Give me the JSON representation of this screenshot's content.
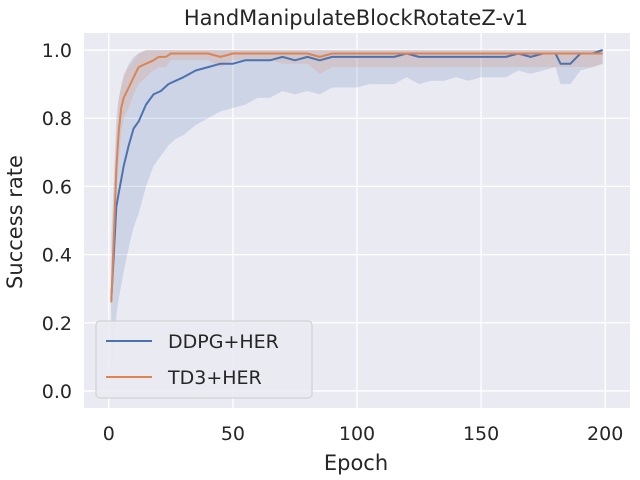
{
  "chart_data": {
    "type": "line",
    "title": "HandManipulateBlockRotateZ-v1",
    "xlabel": "Epoch",
    "ylabel": "Success rate",
    "xlim": [
      -10,
      210
    ],
    "ylim": [
      -0.05,
      1.05
    ],
    "xticks": [
      0,
      50,
      100,
      150,
      200
    ],
    "yticks": [
      0.0,
      0.2,
      0.4,
      0.6,
      0.8,
      1.0
    ],
    "xtick_labels": [
      "0",
      "50",
      "100",
      "150",
      "200"
    ],
    "ytick_labels": [
      "0.0",
      "0.2",
      "0.4",
      "0.6",
      "0.8",
      "1.0"
    ],
    "grid": true,
    "legend_position": "lower-left",
    "series": [
      {
        "name": "DDPG+HER",
        "color": "#4c72b0",
        "x": [
          1,
          2,
          3,
          4,
          6,
          8,
          10,
          12,
          15,
          18,
          21,
          24,
          27,
          30,
          35,
          40,
          45,
          50,
          55,
          60,
          65,
          70,
          75,
          80,
          85,
          90,
          95,
          100,
          105,
          110,
          115,
          120,
          125,
          130,
          135,
          140,
          145,
          150,
          155,
          160,
          165,
          170,
          175,
          180,
          182,
          186,
          190,
          195,
          199
        ],
        "y": [
          0.27,
          0.4,
          0.54,
          0.58,
          0.66,
          0.72,
          0.77,
          0.79,
          0.84,
          0.87,
          0.88,
          0.9,
          0.91,
          0.92,
          0.94,
          0.95,
          0.96,
          0.96,
          0.97,
          0.97,
          0.97,
          0.98,
          0.97,
          0.98,
          0.97,
          0.98,
          0.98,
          0.98,
          0.98,
          0.98,
          0.98,
          0.99,
          0.98,
          0.98,
          0.98,
          0.98,
          0.98,
          0.98,
          0.98,
          0.98,
          0.99,
          0.98,
          0.99,
          0.99,
          0.96,
          0.96,
          0.99,
          0.99,
          1.0
        ],
        "lower": [
          0.05,
          0.13,
          0.22,
          0.27,
          0.35,
          0.42,
          0.48,
          0.52,
          0.6,
          0.66,
          0.69,
          0.72,
          0.74,
          0.75,
          0.78,
          0.8,
          0.82,
          0.83,
          0.84,
          0.86,
          0.86,
          0.88,
          0.87,
          0.88,
          0.87,
          0.89,
          0.89,
          0.89,
          0.9,
          0.9,
          0.9,
          0.92,
          0.9,
          0.91,
          0.91,
          0.92,
          0.91,
          0.92,
          0.92,
          0.92,
          0.94,
          0.93,
          0.94,
          0.95,
          0.9,
          0.9,
          0.94,
          0.95,
          0.96
        ],
        "upper": [
          0.45,
          0.62,
          0.8,
          0.86,
          0.92,
          0.96,
          0.98,
          0.99,
          1.0,
          1.0,
          1.0,
          1.0,
          1.0,
          1.0,
          1.0,
          1.0,
          1.0,
          1.0,
          1.0,
          1.0,
          1.0,
          1.0,
          1.0,
          1.0,
          1.0,
          1.0,
          1.0,
          1.0,
          1.0,
          1.0,
          1.0,
          1.0,
          1.0,
          1.0,
          1.0,
          1.0,
          1.0,
          1.0,
          1.0,
          1.0,
          1.0,
          1.0,
          1.0,
          1.0,
          1.0,
          1.0,
          1.0,
          1.0,
          1.0
        ]
      },
      {
        "name": "TD3+HER",
        "color": "#dd8452",
        "x": [
          1,
          2,
          3,
          4,
          5,
          6,
          8,
          10,
          12,
          15,
          18,
          20,
          23,
          25,
          28,
          30,
          35,
          40,
          45,
          50,
          55,
          60,
          65,
          70,
          75,
          80,
          85,
          90,
          95,
          100,
          105,
          110,
          115,
          120,
          125,
          130,
          135,
          140,
          145,
          150,
          155,
          160,
          165,
          170,
          175,
          180,
          185,
          190,
          195,
          199
        ],
        "y": [
          0.26,
          0.45,
          0.65,
          0.76,
          0.83,
          0.86,
          0.89,
          0.92,
          0.95,
          0.96,
          0.97,
          0.98,
          0.98,
          0.99,
          0.99,
          0.99,
          0.99,
          0.99,
          0.98,
          0.99,
          0.99,
          0.99,
          0.99,
          0.99,
          0.99,
          0.99,
          0.98,
          0.99,
          0.99,
          0.99,
          0.99,
          0.99,
          0.99,
          0.99,
          0.99,
          0.99,
          0.99,
          0.99,
          0.99,
          0.99,
          0.99,
          0.99,
          0.99,
          0.99,
          0.99,
          0.99,
          0.99,
          0.99,
          0.99,
          0.99
        ],
        "lower": [
          0.22,
          0.36,
          0.56,
          0.68,
          0.76,
          0.8,
          0.83,
          0.87,
          0.9,
          0.92,
          0.94,
          0.95,
          0.95,
          0.97,
          0.97,
          0.97,
          0.97,
          0.97,
          0.95,
          0.97,
          0.97,
          0.97,
          0.97,
          0.96,
          0.96,
          0.96,
          0.93,
          0.95,
          0.95,
          0.95,
          0.95,
          0.95,
          0.95,
          0.95,
          0.95,
          0.95,
          0.95,
          0.95,
          0.95,
          0.95,
          0.95,
          0.95,
          0.95,
          0.95,
          0.95,
          0.95,
          0.95,
          0.95,
          0.95,
          0.96
        ],
        "upper": [
          0.3,
          0.55,
          0.74,
          0.85,
          0.9,
          0.93,
          0.95,
          0.97,
          0.99,
          1.0,
          1.0,
          1.0,
          1.0,
          1.0,
          1.0,
          1.0,
          1.0,
          1.0,
          1.0,
          1.0,
          1.0,
          1.0,
          1.0,
          1.0,
          1.0,
          1.0,
          1.0,
          1.0,
          1.0,
          1.0,
          1.0,
          1.0,
          1.0,
          1.0,
          1.0,
          1.0,
          1.0,
          1.0,
          1.0,
          1.0,
          1.0,
          1.0,
          1.0,
          1.0,
          1.0,
          1.0,
          1.0,
          1.0,
          1.0,
          1.0
        ]
      }
    ]
  }
}
